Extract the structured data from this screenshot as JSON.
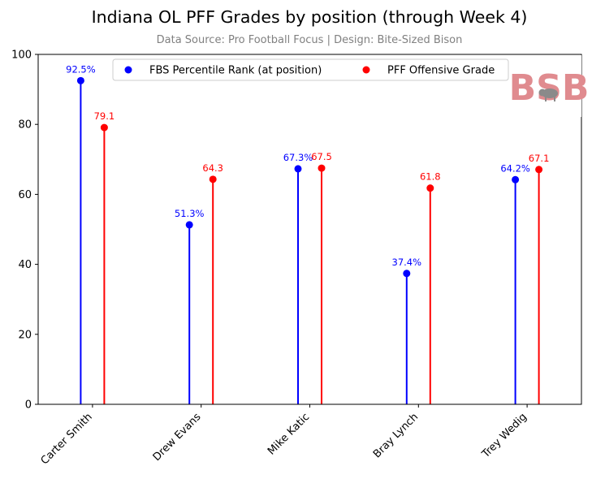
{
  "colors": {
    "percentile": "#0000ff",
    "grade": "#ff0000",
    "subtitle": "#808080",
    "logo": "#e08b8f",
    "logo_bison": "#8a8a8a"
  },
  "logo": {
    "text": "BSB",
    "icon": "bison-icon"
  },
  "chart_data": {
    "type": "lollipop",
    "title": "Indiana OL PFF Grades by position (through Week 4)",
    "subtitle": "Data Source: Pro Football Focus | Design: Bite-Sized Bison",
    "xlabel": "",
    "ylabel": "",
    "ylim": [
      0,
      100
    ],
    "yticks": [
      "0",
      "20",
      "40",
      "60",
      "80",
      "100"
    ],
    "categories": [
      "Carter Smith",
      "Drew Evans",
      "Mike Katic",
      "Bray Lynch",
      "Trey Wedig"
    ],
    "series": [
      {
        "name": "FBS Percentile Rank (at position)",
        "values": [
          92.5,
          51.3,
          67.3,
          37.4,
          64.2
        ],
        "labels": [
          "92.5%",
          "51.3%",
          "67.3%",
          "37.4%",
          "64.2%"
        ]
      },
      {
        "name": "PFF Offensive Grade",
        "values": [
          79.1,
          64.3,
          67.5,
          61.8,
          67.1
        ],
        "labels": [
          "79.1",
          "64.3",
          "67.5",
          "61.8",
          "67.1"
        ]
      }
    ],
    "grid": false,
    "legend_position": "top-center"
  }
}
